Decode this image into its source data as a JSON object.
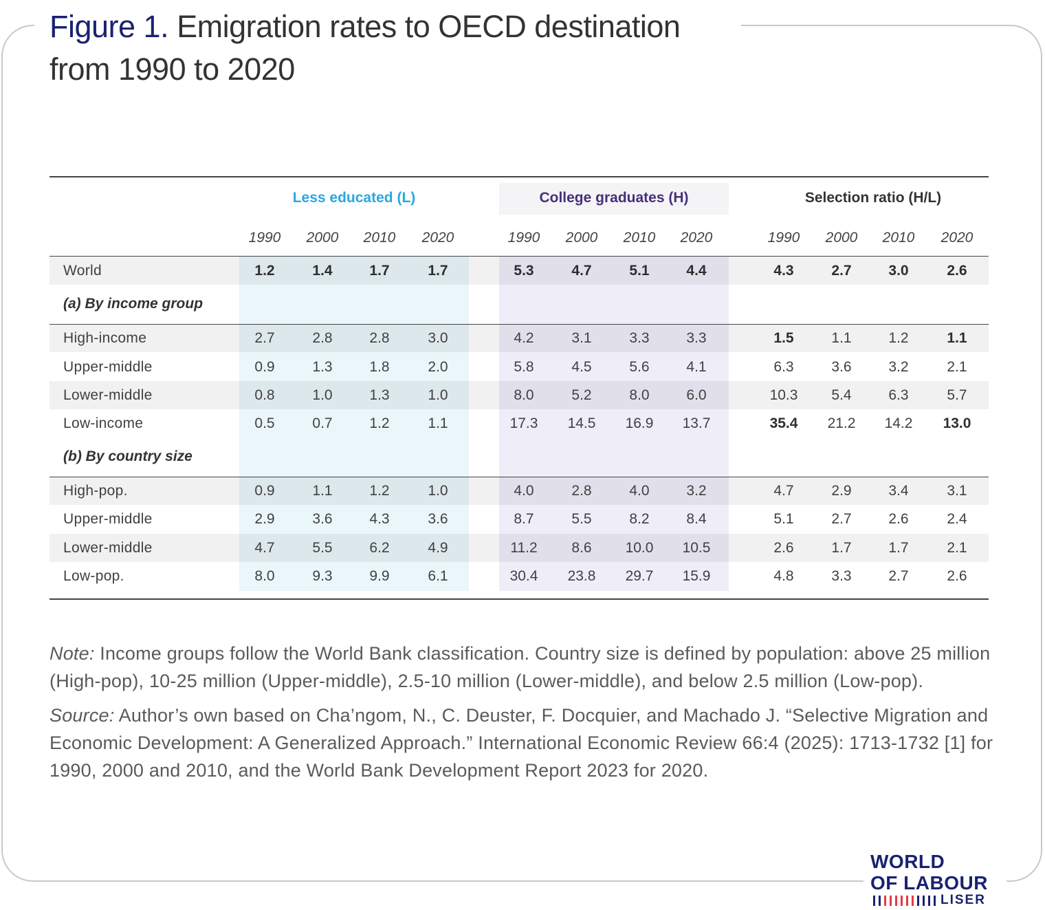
{
  "title": {
    "figure_label": "Figure 1.",
    "text_line1": " Emigration rates to OECD destination",
    "text_line2": "from 1990 to 2020"
  },
  "colors": {
    "less_educated": "#2aa6e0",
    "college": "#46307a",
    "selection": "#333333",
    "title_accent": "#1a2270",
    "band_less": "#eaf6fa",
    "band_college": "#efedf8"
  },
  "chart_data": {
    "type": "table",
    "groups": [
      {
        "name": "Less educated (L)",
        "years": [
          "1990",
          "2000",
          "2010",
          "2020"
        ]
      },
      {
        "name": "College graduates (H)",
        "years": [
          "1990",
          "2000",
          "2010",
          "2020"
        ]
      },
      {
        "name": "Selection ratio (H/L)",
        "years": [
          "1990",
          "2000",
          "2010",
          "2020"
        ]
      }
    ],
    "rows": [
      {
        "label": "World",
        "values": [
          1.2,
          1.4,
          1.7,
          1.7,
          5.3,
          4.7,
          5.1,
          4.4,
          4.3,
          2.7,
          3.0,
          2.6
        ],
        "display": [
          "1.2",
          "1.4",
          "1.7",
          "1.7",
          "5.3",
          "4.7",
          "5.1",
          "4.4",
          "4.3",
          "2.7",
          "3.0",
          "2.6"
        ]
      },
      {
        "section": "(a) By income group"
      },
      {
        "label": "High-income",
        "values": [
          2.7,
          2.8,
          2.8,
          3.0,
          4.2,
          3.1,
          3.3,
          3.3,
          1.5,
          1.1,
          1.2,
          1.1
        ],
        "display": [
          "2.7",
          "2.8",
          "2.8",
          "3.0",
          "4.2",
          "3.1",
          "3.3",
          "3.3",
          "1.5",
          "1.1",
          "1.2",
          "1.1"
        ]
      },
      {
        "label": "Upper-middle",
        "values": [
          0.9,
          1.3,
          1.8,
          2.0,
          5.8,
          4.5,
          5.6,
          4.1,
          6.3,
          3.6,
          3.2,
          2.1
        ],
        "display": [
          "0.9",
          "1.3",
          "1.8",
          "2.0",
          "5.8",
          "4.5",
          "5.6",
          "4.1",
          "6.3",
          "3.6",
          "3.2",
          "2.1"
        ]
      },
      {
        "label": "Lower-middle",
        "values": [
          0.8,
          1.0,
          1.3,
          1.0,
          8.0,
          5.2,
          8.0,
          6.0,
          10.3,
          5.4,
          6.3,
          5.7
        ],
        "display": [
          "0.8",
          "1.0",
          "1.3",
          "1.0",
          "8.0",
          "5.2",
          "8.0",
          "6.0",
          "10.3",
          "5.4",
          "6.3",
          "5.7"
        ]
      },
      {
        "label": "Low-income",
        "values": [
          0.5,
          0.7,
          1.2,
          1.1,
          17.3,
          14.5,
          16.9,
          13.7,
          35.4,
          21.2,
          14.2,
          13.0
        ],
        "display": [
          "0.5",
          "0.7",
          "1.2",
          "1.1",
          "17.3",
          "14.5",
          "16.9",
          "13.7",
          "35.4",
          "21.2",
          "14.2",
          "13.0"
        ]
      },
      {
        "section": "(b) By country size"
      },
      {
        "label": "High-pop.",
        "values": [
          0.9,
          1.1,
          1.2,
          1.0,
          4.0,
          2.8,
          4.0,
          3.2,
          4.7,
          2.9,
          3.4,
          3.1
        ],
        "display": [
          "0.9",
          "1.1",
          "1.2",
          "1.0",
          "4.0",
          "2.8",
          "4.0",
          "3.2",
          "4.7",
          "2.9",
          "3.4",
          "3.1"
        ]
      },
      {
        "label": "Upper-middle",
        "values": [
          2.9,
          3.6,
          4.3,
          3.6,
          8.7,
          5.5,
          8.2,
          8.4,
          5.1,
          2.7,
          2.6,
          2.4
        ],
        "display": [
          "2.9",
          "3.6",
          "4.3",
          "3.6",
          "8.7",
          "5.5",
          "8.2",
          "8.4",
          "5.1",
          "2.7",
          "2.6",
          "2.4"
        ]
      },
      {
        "label": "Lower-middle",
        "values": [
          4.7,
          5.5,
          6.2,
          4.9,
          11.2,
          8.6,
          10.0,
          10.5,
          2.6,
          1.7,
          1.7,
          2.1
        ],
        "display": [
          "4.7",
          "5.5",
          "6.2",
          "4.9",
          "11.2",
          "8.6",
          "10.0",
          "10.5",
          "2.6",
          "1.7",
          "1.7",
          "2.1"
        ]
      },
      {
        "label": "Low-pop.",
        "values": [
          8.0,
          9.3,
          9.9,
          6.1,
          30.4,
          23.8,
          29.7,
          15.9,
          4.8,
          3.3,
          2.7,
          2.6
        ],
        "display": [
          "8.0",
          "9.3",
          "9.9",
          "6.1",
          "30.4",
          "23.8",
          "29.7",
          "15.9",
          "4.8",
          "3.3",
          "2.7",
          "2.6"
        ]
      }
    ]
  },
  "notes": {
    "note_label": "Note:",
    "note_text": " Income groups follow the World Bank classification. Country size is defined by population: above 25 million (High-pop), 10-25 million (Upper-middle), 2.5-10 million (Lower-middle), and below 2.5 million (Low-pop).",
    "source_label": "Source:",
    "source_text": " Author’s own based on Cha’ngom, N., C. Deuster, F. Docquier, and Machado J. “Selective Migration and Economic Development: A Generalized Approach.” International Economic Review 66:4 (2025): 1713-1732 [1] for 1990, 2000 and 2010, and the World Bank Development Report 2023 for 2020."
  },
  "logo": {
    "line1": "WORLD",
    "line2": "OF LABOUR",
    "line3": "LISER"
  }
}
